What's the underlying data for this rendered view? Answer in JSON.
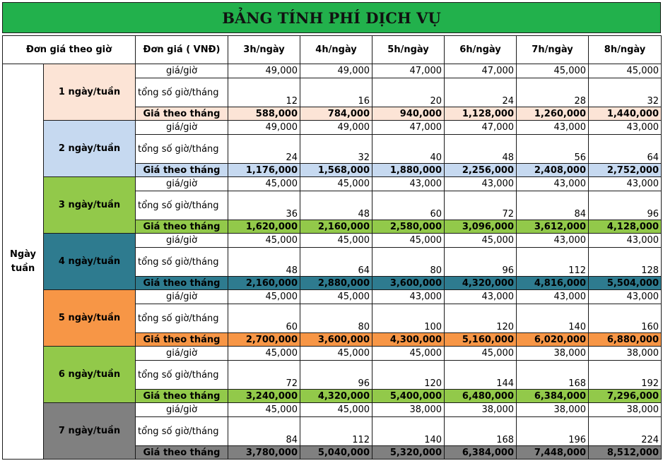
{
  "title": "BẢNG TÍNH PHÍ DỊCH VỤ",
  "header": {
    "col1": "Đơn giá theo giờ",
    "col2": "Đơn giá ( VNĐ)",
    "hours": [
      "3h/ngày",
      "4h/ngày",
      "5h/ngày",
      "6h/ngày",
      "7h/ngày",
      "8h/ngày"
    ]
  },
  "side_label": "Ngày tuần",
  "row_labels": {
    "rate": "giá/giờ",
    "hours": "tổng số giờ/tháng",
    "monthly": "Giá theo tháng"
  },
  "groups": [
    {
      "label": "1 ngày/tuần",
      "color": "#fce4d6",
      "rate": [
        "49,000",
        "49,000",
        "47,000",
        "47,000",
        "45,000",
        "45,000"
      ],
      "hours": [
        "12",
        "16",
        "20",
        "24",
        "28",
        "32"
      ],
      "monthly": [
        "588,000",
        "784,000",
        "940,000",
        "1,128,000",
        "1,260,000",
        "1,440,000"
      ]
    },
    {
      "label": "2 ngày/tuần",
      "color": "#c6d9f0",
      "rate": [
        "49,000",
        "49,000",
        "47,000",
        "47,000",
        "43,000",
        "43,000"
      ],
      "hours": [
        "24",
        "32",
        "40",
        "48",
        "56",
        "64"
      ],
      "monthly": [
        "1,176,000",
        "1,568,000",
        "1,880,000",
        "2,256,000",
        "2,408,000",
        "2,752,000"
      ]
    },
    {
      "label": "3 ngày/tuần",
      "color": "#92c94a",
      "rate": [
        "45,000",
        "45,000",
        "43,000",
        "43,000",
        "43,000",
        "43,000"
      ],
      "hours": [
        "36",
        "48",
        "60",
        "72",
        "84",
        "96"
      ],
      "monthly": [
        "1,620,000",
        "2,160,000",
        "2,580,000",
        "3,096,000",
        "3,612,000",
        "4,128,000"
      ]
    },
    {
      "label": "4 ngày/tuần",
      "color": "#2e7b8f",
      "rate": [
        "45,000",
        "45,000",
        "45,000",
        "45,000",
        "43,000",
        "43,000"
      ],
      "hours": [
        "48",
        "64",
        "80",
        "96",
        "112",
        "128"
      ],
      "monthly": [
        "2,160,000",
        "2,880,000",
        "3,600,000",
        "4,320,000",
        "4,816,000",
        "5,504,000"
      ]
    },
    {
      "label": "5 ngày/tuần",
      "color": "#f79646",
      "rate": [
        "45,000",
        "45,000",
        "43,000",
        "43,000",
        "43,000",
        "43,000"
      ],
      "hours": [
        "60",
        "80",
        "100",
        "120",
        "140",
        "160"
      ],
      "monthly": [
        "2,700,000",
        "3,600,000",
        "4,300,000",
        "5,160,000",
        "6,020,000",
        "6,880,000"
      ]
    },
    {
      "label": "6 ngày/tuần",
      "color": "#92c94a",
      "rate": [
        "45,000",
        "45,000",
        "45,000",
        "45,000",
        "38,000",
        "38,000"
      ],
      "hours": [
        "72",
        "96",
        "120",
        "144",
        "168",
        "192"
      ],
      "monthly": [
        "3,240,000",
        "4,320,000",
        "5,400,000",
        "6,480,000",
        "6,384,000",
        "7,296,000"
      ]
    },
    {
      "label": "7 ngày/tuần",
      "color": "#808080",
      "rate": [
        "45,000",
        "45,000",
        "38,000",
        "38,000",
        "38,000",
        "38,000"
      ],
      "hours": [
        "84",
        "112",
        "140",
        "168",
        "196",
        "224"
      ],
      "monthly": [
        "3,780,000",
        "5,040,000",
        "5,320,000",
        "6,384,000",
        "7,448,000",
        "8,512,000"
      ]
    }
  ]
}
